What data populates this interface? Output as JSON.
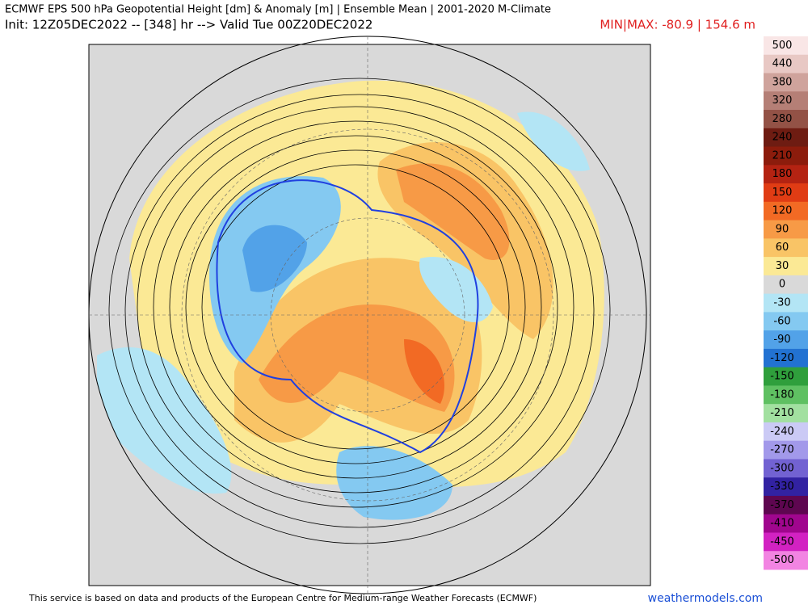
{
  "header": {
    "title": "ECMWF EPS 500 hPa Geopotential Height [dm] & Anomaly [m] | Ensemble Mean | 2001-2020 M-Climate",
    "subtitle": "Init: 12Z05DEC2022 -- [348] hr --> Valid Tue 00Z20DEC2022",
    "minmax": "MIN|MAX: -80.9 | 154.6 m"
  },
  "colorbar": [
    {
      "label": "500",
      "color": "#f9e6e6"
    },
    {
      "label": "440",
      "color": "#e8c8c4"
    },
    {
      "label": "380",
      "color": "#cfa39c"
    },
    {
      "label": "320",
      "color": "#b57f76"
    },
    {
      "label": "280",
      "color": "#935246"
    },
    {
      "label": "240",
      "color": "#6e1c12"
    },
    {
      "label": "210",
      "color": "#8c1c0c"
    },
    {
      "label": "180",
      "color": "#b42312"
    },
    {
      "label": "150",
      "color": "#e03c14"
    },
    {
      "label": "120",
      "color": "#f26a24"
    },
    {
      "label": "90",
      "color": "#f79a46"
    },
    {
      "label": "60",
      "color": "#f9c466"
    },
    {
      "label": "30",
      "color": "#fbe995"
    },
    {
      "label": "0",
      "color": "#d9d9d9"
    },
    {
      "label": "-30",
      "color": "#b3e5f5"
    },
    {
      "label": "-60",
      "color": "#84c9f1"
    },
    {
      "label": "-90",
      "color": "#52a2e8"
    },
    {
      "label": "-120",
      "color": "#2272d2"
    },
    {
      "label": "-150",
      "color": "#2f9f3c"
    },
    {
      "label": "-180",
      "color": "#5fc062"
    },
    {
      "label": "-210",
      "color": "#a2e0a0"
    },
    {
      "label": "-240",
      "color": "#cbcaf5"
    },
    {
      "label": "-270",
      "color": "#a299ea"
    },
    {
      "label": "-300",
      "color": "#7262d2"
    },
    {
      "label": "-330",
      "color": "#3222a2"
    },
    {
      "label": "-370",
      "color": "#5e0650"
    },
    {
      "label": "-410",
      "color": "#a0068e"
    },
    {
      "label": "-450",
      "color": "#d222c2"
    },
    {
      "label": "-500",
      "color": "#f284e2"
    }
  ],
  "footer": {
    "credit": "This service is based on data and products of the European Centre for Medium-range Weather Forecasts (ECMWF)",
    "site": "weathermodels.com"
  }
}
